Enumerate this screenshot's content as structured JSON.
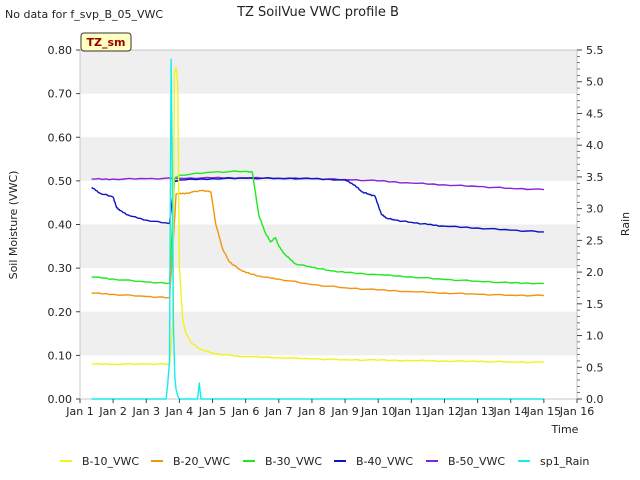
{
  "chart_data": {
    "type": "line",
    "title": "TZ SoilVue VWC profile B",
    "corner_note": "No data for f_svp_B_05_VWC",
    "site_badge": "TZ_sm",
    "xlabel": "Time",
    "ylabel_left": "Soil Moisture (VWC)",
    "ylabel_right": "Rain",
    "xlim": [
      1,
      16
    ],
    "ylim_left": [
      0.0,
      0.8
    ],
    "ylim_right": [
      0.0,
      5.5
    ],
    "x_ticks": [
      "Jan 1",
      "Jan 2",
      "Jan 3",
      "Jan 4",
      "Jan 5",
      "Jan 6",
      "Jan 7",
      "Jan 8",
      "Jan 9",
      "Jan 10",
      "Jan 11",
      "Jan 12",
      "Jan 13",
      "Jan 14",
      "Jan 15",
      "Jan 16"
    ],
    "y_ticks_left": [
      "0.00",
      "0.10",
      "0.20",
      "0.30",
      "0.40",
      "0.50",
      "0.60",
      "0.70",
      "0.80"
    ],
    "y_ticks_right": [
      "0.0",
      "0.5",
      "1.0",
      "1.5",
      "2.0",
      "2.5",
      "3.0",
      "3.5",
      "4.0",
      "4.5",
      "5.0",
      "5.5"
    ],
    "grid": "horizontal bands",
    "legend_position": "bottom",
    "series": [
      {
        "name": "B-10_VWC",
        "axis": "left",
        "color": "#f2f21c",
        "x": [
          1.35,
          2.0,
          3.0,
          3.7,
          3.8,
          3.85,
          3.9,
          3.95,
          4.0,
          4.1,
          4.2,
          4.35,
          4.6,
          5.0,
          5.5,
          6.0,
          7.0,
          8.0,
          9.0,
          10.0,
          11.0,
          12.0,
          13.0,
          14.0,
          15.0
        ],
        "y": [
          0.08,
          0.08,
          0.08,
          0.08,
          0.17,
          0.75,
          0.76,
          0.72,
          0.3,
          0.18,
          0.15,
          0.13,
          0.115,
          0.105,
          0.1,
          0.097,
          0.095,
          0.092,
          0.09,
          0.089,
          0.088,
          0.087,
          0.086,
          0.085,
          0.084
        ]
      },
      {
        "name": "B-20_VWC",
        "axis": "left",
        "color": "#f0960e",
        "x": [
          1.35,
          2.0,
          3.0,
          3.7,
          3.8,
          3.9,
          4.2,
          4.7,
          4.95,
          5.0,
          5.1,
          5.3,
          5.5,
          5.8,
          6.0,
          6.5,
          7.0,
          8.0,
          9.0,
          10.0,
          11.0,
          12.0,
          13.0,
          14.0,
          15.0
        ],
        "y": [
          0.243,
          0.24,
          0.235,
          0.232,
          0.34,
          0.47,
          0.472,
          0.478,
          0.475,
          0.45,
          0.4,
          0.345,
          0.315,
          0.298,
          0.29,
          0.28,
          0.275,
          0.262,
          0.255,
          0.25,
          0.246,
          0.243,
          0.24,
          0.238,
          0.237
        ]
      },
      {
        "name": "B-30_VWC",
        "axis": "left",
        "color": "#1ee81e",
        "x": [
          1.35,
          2.0,
          3.0,
          3.7,
          3.78,
          3.85,
          4.0,
          5.0,
          6.0,
          6.2,
          6.4,
          6.6,
          6.75,
          6.9,
          7.0,
          7.2,
          7.5,
          8.0,
          8.5,
          9.0,
          10.0,
          11.0,
          12.0,
          13.0,
          14.0,
          15.0
        ],
        "y": [
          0.28,
          0.275,
          0.268,
          0.265,
          0.38,
          0.505,
          0.513,
          0.52,
          0.522,
          0.52,
          0.42,
          0.38,
          0.36,
          0.37,
          0.35,
          0.33,
          0.31,
          0.302,
          0.295,
          0.29,
          0.285,
          0.28,
          0.274,
          0.27,
          0.266,
          0.265
        ]
      },
      {
        "name": "B-40_VWC",
        "axis": "left",
        "color": "#0a14c0",
        "x": [
          1.35,
          1.6,
          2.0,
          2.1,
          2.2,
          2.5,
          3.0,
          3.7,
          3.78,
          3.85,
          4.0,
          5.0,
          6.0,
          7.0,
          8.0,
          9.0,
          9.3,
          9.5,
          9.7,
          9.9,
          10.1,
          10.25,
          10.5,
          11.0,
          11.5,
          12.0,
          13.0,
          14.0,
          15.0
        ],
        "y": [
          0.485,
          0.472,
          0.463,
          0.44,
          0.432,
          0.42,
          0.41,
          0.402,
          0.455,
          0.498,
          0.502,
          0.505,
          0.506,
          0.506,
          0.505,
          0.502,
          0.49,
          0.475,
          0.47,
          0.465,
          0.423,
          0.415,
          0.41,
          0.405,
          0.4,
          0.396,
          0.392,
          0.387,
          0.383
        ]
      },
      {
        "name": "B-50_VWC",
        "axis": "left",
        "color": "#8a22d6",
        "x": [
          1.35,
          2.0,
          3.0,
          4.0,
          5.0,
          6.0,
          7.0,
          8.0,
          9.0,
          10.0,
          11.0,
          12.0,
          13.0,
          14.0,
          15.0
        ],
        "y": [
          0.504,
          0.504,
          0.505,
          0.506,
          0.507,
          0.507,
          0.506,
          0.505,
          0.503,
          0.5,
          0.495,
          0.491,
          0.487,
          0.483,
          0.48
        ]
      },
      {
        "name": "sp1_Rain",
        "axis": "right",
        "color": "#14ecf2",
        "x": [
          1.35,
          3.6,
          3.65,
          3.7,
          3.75,
          3.78,
          3.82,
          3.86,
          3.9,
          3.95,
          4.0,
          4.55,
          4.6,
          4.65,
          4.7,
          15.0
        ],
        "y": [
          0.0,
          0.0,
          0.25,
          0.6,
          5.35,
          4.0,
          1.2,
          0.35,
          0.15,
          0.05,
          0.0,
          0.0,
          0.25,
          0.0,
          0.0,
          0.0
        ]
      }
    ]
  }
}
